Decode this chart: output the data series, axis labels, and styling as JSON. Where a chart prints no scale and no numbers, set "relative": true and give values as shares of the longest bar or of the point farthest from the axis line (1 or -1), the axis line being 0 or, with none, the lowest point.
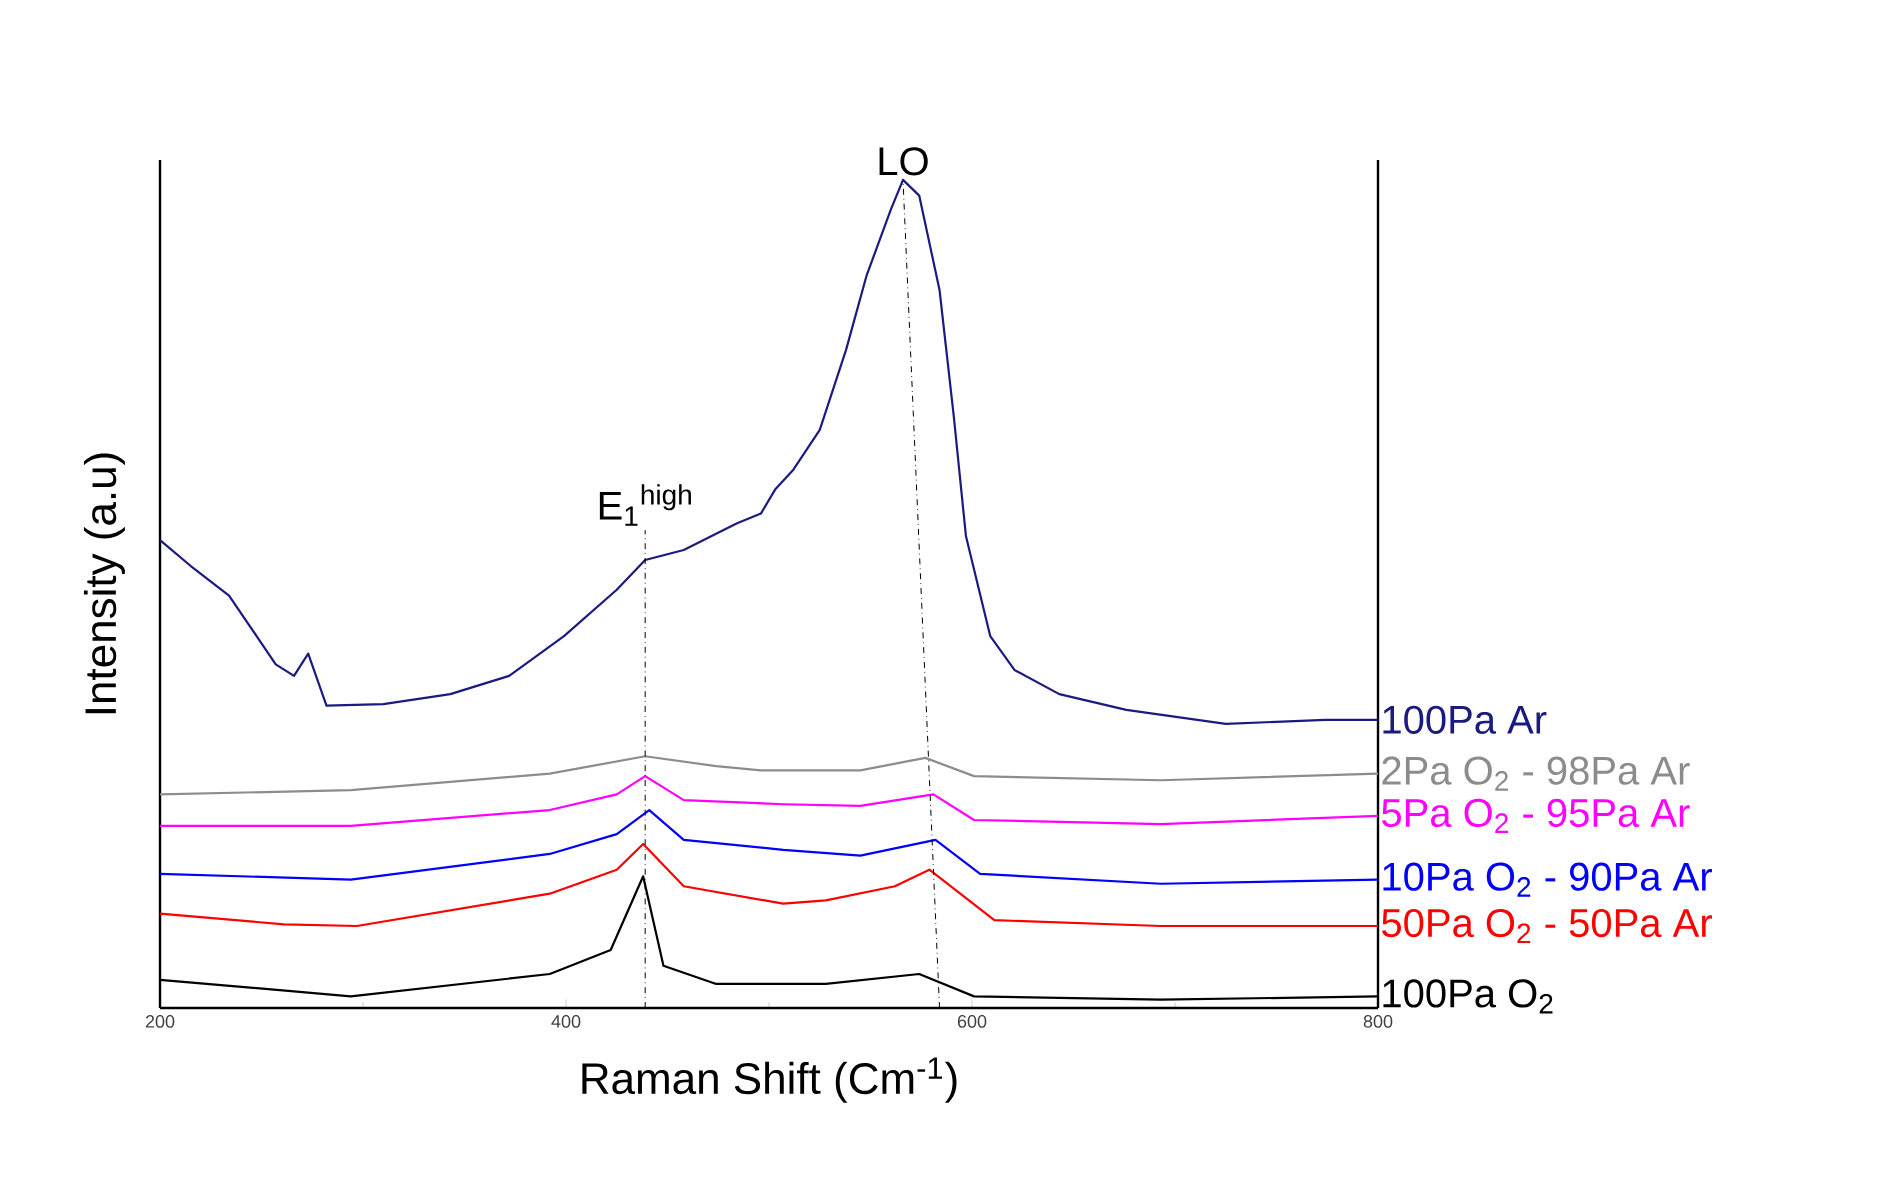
{
  "chart_data": {
    "type": "line",
    "relative": true,
    "xlabel": "Raman Shift (Cm$^{-1}$)",
    "ylabel": "Intensity (a.u)",
    "xlim": [
      200,
      800
    ],
    "xticks": [
      200,
      400,
      600,
      800
    ],
    "annotations": [
      {
        "text": "LO",
        "x": 566,
        "y": 1.0
      },
      {
        "text": "E$_{1}$$^{high}$",
        "x": 439,
        "y": 0.577
      }
    ],
    "series": [
      {
        "name": "100Pa Ar",
        "color": "#1a1a80",
        "x": [
          200,
          215,
          234,
          257,
          266,
          273,
          282,
          310,
          343,
          372,
          399,
          425,
          439,
          458,
          484,
          496,
          503,
          512,
          525,
          538,
          548,
          560,
          566,
          574,
          584,
          591,
          597,
          609,
          621,
          643,
          676,
          725,
          774,
          800
        ],
        "values": [
          0.565,
          0.534,
          0.498,
          0.415,
          0.401,
          0.428,
          0.365,
          0.367,
          0.379,
          0.401,
          0.449,
          0.505,
          0.541,
          0.553,
          0.585,
          0.597,
          0.626,
          0.65,
          0.698,
          0.795,
          0.884,
          0.964,
          1.0,
          0.981,
          0.867,
          0.715,
          0.57,
          0.449,
          0.408,
          0.379,
          0.36,
          0.343,
          0.348,
          0.348
        ]
      },
      {
        "name": "2Pa O$_{2}$ - 98Pa Ar",
        "color": "#8c8c8c",
        "x": [
          200,
          294,
          392,
          439,
          474,
          496,
          545,
          577,
          601,
          693,
          800
        ],
        "values": [
          0.258,
          0.263,
          0.283,
          0.304,
          0.292,
          0.287,
          0.287,
          0.302,
          0.28,
          0.275,
          0.283
        ]
      },
      {
        "name": "5Pa O$_{2}$ - 95Pa Ar",
        "color": "#ff00ff",
        "x": [
          200,
          294,
          392,
          425,
          439,
          458,
          507,
          545,
          581,
          601,
          693,
          800
        ],
        "values": [
          0.22,
          0.22,
          0.239,
          0.258,
          0.28,
          0.251,
          0.246,
          0.244,
          0.258,
          0.227,
          0.222,
          0.232
        ]
      },
      {
        "name": "10Pa O$_{2}$ - 90Pa Ar",
        "color": "#0000ff",
        "x": [
          200,
          294,
          392,
          425,
          441,
          458,
          507,
          545,
          582,
          604,
          693,
          800
        ],
        "values": [
          0.162,
          0.155,
          0.186,
          0.21,
          0.239,
          0.203,
          0.191,
          0.184,
          0.203,
          0.162,
          0.15,
          0.155
        ]
      },
      {
        "name": "50Pa O$_{2}$ - 50Pa Ar",
        "color": "#ff0000",
        "x": [
          200,
          261,
          297,
          392,
          425,
          438,
          458,
          507,
          528,
          562,
          579,
          611,
          693,
          800
        ],
        "values": [
          0.114,
          0.101,
          0.099,
          0.138,
          0.167,
          0.198,
          0.147,
          0.126,
          0.13,
          0.147,
          0.167,
          0.106,
          0.099,
          0.099
        ]
      },
      {
        "name": "100Pa O$_{2}$",
        "color": "#000000",
        "x": [
          200,
          294,
          392,
          422,
          438,
          448,
          474,
          528,
          574,
          601,
          693,
          800
        ],
        "values": [
          0.034,
          0.014,
          0.041,
          0.07,
          0.159,
          0.051,
          0.029,
          0.029,
          0.041,
          0.014,
          0.01,
          0.014
        ]
      },
      {
        "type": "line",
        "line_style": "dashed",
        "color": "#000000",
        "x": [
          439,
          439
        ],
        "values": [
          0,
          0.577
        ]
      },
      {
        "type": "line",
        "line_style": "dashed",
        "color": "#000000",
        "x": [
          584,
          566
        ],
        "values": [
          0,
          1.0
        ]
      }
    ]
  }
}
